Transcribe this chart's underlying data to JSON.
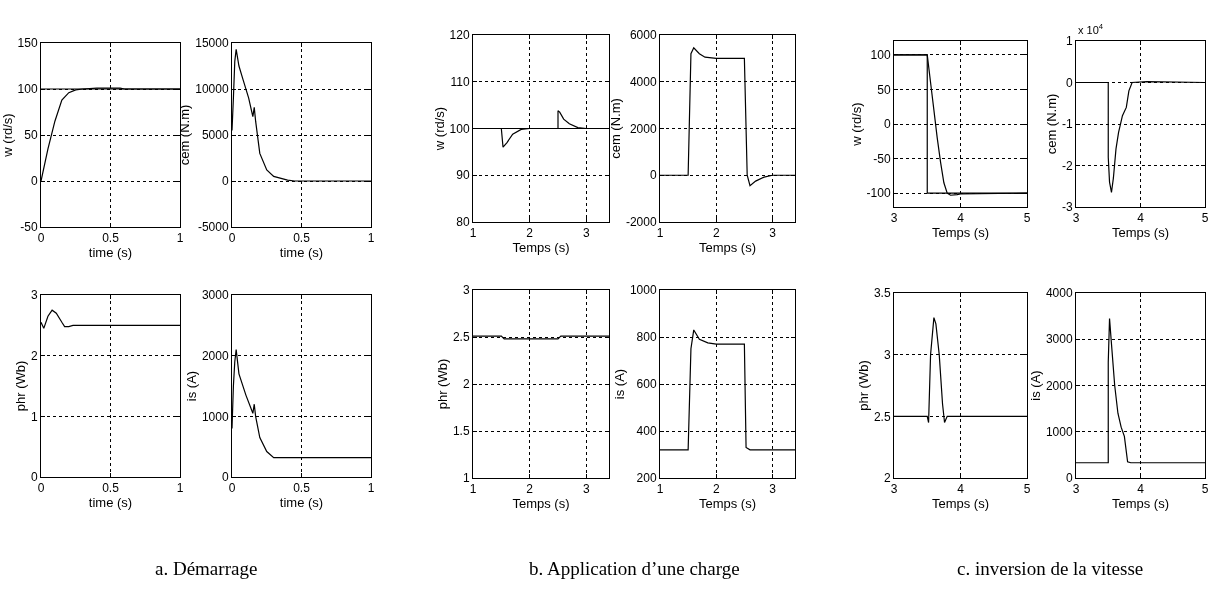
{
  "chart_data": [
    {
      "type": "line",
      "xlabel": "time (s)",
      "ylabel": "w (rd/s)",
      "xlim": [
        0,
        1
      ],
      "xticks": [
        0,
        0.5,
        1
      ],
      "ylim": [
        -50,
        150
      ],
      "yticks": [
        -50,
        0,
        50,
        100,
        150
      ],
      "grid": true,
      "ref_lines": [
        {
          "axis": "y",
          "value": 100,
          "color": "#000000"
        }
      ],
      "series": [
        {
          "color": "#000000",
          "x": [
            0,
            0.05,
            0.1,
            0.15,
            0.2,
            0.25,
            0.3,
            0.4,
            0.5,
            0.57,
            0.6,
            1
          ],
          "values": [
            0,
            35,
            65,
            88,
            96,
            99,
            100,
            101,
            101,
            101,
            100,
            100
          ]
        }
      ]
    },
    {
      "type": "line",
      "xlabel": "time (s)",
      "ylabel": "cem (N.m)",
      "xlim": [
        0,
        1
      ],
      "xticks": [
        0,
        0.5,
        1
      ],
      "ylim": [
        -5000,
        15000
      ],
      "yticks": [
        -5000,
        0,
        5000,
        10000,
        15000
      ],
      "grid": true,
      "series": [
        {
          "color": "#000000",
          "x": [
            0,
            0.01,
            0.02,
            0.03,
            0.05,
            0.08,
            0.12,
            0.15,
            0.16,
            0.17,
            0.2,
            0.25,
            0.3,
            0.4,
            0.45,
            1
          ],
          "values": [
            5500,
            9000,
            13000,
            14300,
            12500,
            11000,
            9000,
            7000,
            8000,
            6500,
            3000,
            1200,
            500,
            100,
            0,
            0
          ]
        }
      ]
    },
    {
      "type": "line",
      "xlabel": "Temps (s)",
      "ylabel": "w (rd/s)",
      "xlim": [
        1,
        3.4
      ],
      "xticks": [
        1,
        2,
        3
      ],
      "ylim": [
        80,
        120
      ],
      "yticks": [
        80,
        90,
        100,
        110,
        120
      ],
      "grid": true,
      "ref_lines": [
        {
          "axis": "y",
          "value": 100,
          "color": "#000000"
        }
      ],
      "series": [
        {
          "color": "#000000",
          "x": [
            1,
            1.5,
            1.53,
            1.6,
            1.7,
            1.85,
            2,
            2.5,
            2.5,
            2.53,
            2.6,
            2.7,
            2.85,
            3,
            3.4
          ],
          "values": [
            100,
            100,
            96,
            97,
            98.8,
            99.8,
            100,
            100,
            103.8,
            103.5,
            102,
            101,
            100.2,
            100,
            100
          ]
        }
      ]
    },
    {
      "type": "line",
      "xlabel": "Temps (s)",
      "ylabel": "cem (N.m)",
      "xlim": [
        1,
        3.4
      ],
      "xticks": [
        1,
        2,
        3
      ],
      "ylim": [
        -2000,
        6000
      ],
      "yticks": [
        -2000,
        0,
        2000,
        4000,
        6000
      ],
      "grid": true,
      "series": [
        {
          "color": "#000000",
          "x": [
            1,
            1.5,
            1.55,
            1.6,
            1.7,
            1.8,
            2,
            2.5,
            2.55,
            2.6,
            2.7,
            2.85,
            3,
            3.4
          ],
          "values": [
            0,
            0,
            5200,
            5450,
            5200,
            5050,
            5000,
            5000,
            0,
            -450,
            -250,
            -80,
            0,
            0
          ]
        }
      ]
    },
    {
      "type": "line",
      "xlabel": "Temps (s)",
      "ylabel": "w (rd/s)",
      "xlim": [
        3,
        5
      ],
      "xticks": [
        3,
        4,
        5
      ],
      "ylim": [
        -120,
        120
      ],
      "yticks": [
        -100,
        -50,
        0,
        50,
        100
      ],
      "grid": true,
      "series": [
        {
          "color": "#000000",
          "x": [
            3,
            3.5,
            3.5,
            5
          ],
          "values": [
            100,
            100,
            -100,
            -100
          ]
        },
        {
          "color": "#000000",
          "x": [
            3,
            3.5,
            3.55,
            3.6,
            3.65,
            3.7,
            3.75,
            3.8,
            3.85,
            3.95,
            4,
            5
          ],
          "values": [
            100,
            100,
            60,
            20,
            -20,
            -55,
            -85,
            -100,
            -103,
            -102,
            -101,
            -100
          ]
        }
      ]
    },
    {
      "type": "line",
      "xlabel": "Temps (s)",
      "ylabel": "cem (N.m)",
      "xlim": [
        3,
        5
      ],
      "xticks": [
        3,
        4,
        5
      ],
      "ylim": [
        -3,
        1
      ],
      "yticks": [
        -3,
        -2,
        -1,
        0,
        1
      ],
      "grid": true,
      "annotations": [
        "x 10$^{4}$"
      ],
      "series": [
        {
          "color": "#000000",
          "x": [
            3,
            3.5,
            3.5,
            3.52,
            3.55,
            3.58,
            3.62,
            3.66,
            3.72,
            3.78,
            3.82,
            3.87,
            4.1,
            5
          ],
          "values": [
            0,
            0,
            -1.8,
            -2.4,
            -2.65,
            -2.3,
            -1.6,
            -1.2,
            -0.8,
            -0.6,
            -0.2,
            0,
            0.02,
            0
          ]
        }
      ]
    },
    {
      "type": "line",
      "xlabel": "time (s)",
      "ylabel": "phr (Wb)",
      "xlim": [
        0,
        1
      ],
      "xticks": [
        0,
        0.5,
        1
      ],
      "ylim": [
        0,
        3
      ],
      "yticks": [
        0,
        1,
        2,
        3
      ],
      "grid": true,
      "annotations": [
        "a. Démarrage"
      ],
      "series": [
        {
          "color": "#000000",
          "x": [
            0,
            0.02,
            0.05,
            0.08,
            0.11,
            0.15,
            0.17,
            0.2,
            0.23,
            1
          ],
          "values": [
            2.55,
            2.45,
            2.65,
            2.75,
            2.7,
            2.55,
            2.48,
            2.48,
            2.5,
            2.5
          ]
        }
      ]
    },
    {
      "type": "line",
      "xlabel": "time (s)",
      "ylabel": "is (A)",
      "xlim": [
        0,
        1
      ],
      "xticks": [
        0,
        0.5,
        1
      ],
      "ylim": [
        0,
        3000
      ],
      "yticks": [
        0,
        1000,
        2000,
        3000
      ],
      "grid": true,
      "series": [
        {
          "color": "#000000",
          "x": [
            0,
            0.01,
            0.02,
            0.03,
            0.05,
            0.1,
            0.15,
            0.16,
            0.17,
            0.2,
            0.25,
            0.3,
            1
          ],
          "values": [
            800,
            1500,
            1900,
            2100,
            1700,
            1350,
            1050,
            1200,
            1000,
            650,
            420,
            320,
            320
          ]
        }
      ]
    },
    {
      "type": "line",
      "xlabel": "Temps (s)",
      "ylabel": "phr (Wb)",
      "xlim": [
        1,
        3.4
      ],
      "xticks": [
        1,
        2,
        3
      ],
      "ylim": [
        1,
        3
      ],
      "yticks": [
        1,
        1.5,
        2,
        2.5,
        3
      ],
      "grid": true,
      "annotations": [
        "b. Application d’une charge"
      ],
      "series": [
        {
          "color": "#000000",
          "x": [
            1,
            1.5,
            1.55,
            2.5,
            2.55,
            3.4
          ],
          "values": [
            2.51,
            2.51,
            2.48,
            2.48,
            2.51,
            2.51
          ]
        }
      ]
    },
    {
      "type": "line",
      "xlabel": "Temps (s)",
      "ylabel": "is (A)",
      "xlim": [
        1,
        3.4
      ],
      "xticks": [
        1,
        2,
        3
      ],
      "ylim": [
        200,
        1000
      ],
      "yticks": [
        200,
        400,
        600,
        800,
        1000
      ],
      "grid": true,
      "series": [
        {
          "color": "#000000",
          "x": [
            1,
            1.5,
            1.55,
            1.6,
            1.7,
            1.85,
            2,
            2.5,
            2.53,
            2.6,
            3.4
          ],
          "values": [
            320,
            320,
            750,
            830,
            790,
            775,
            770,
            770,
            330,
            320,
            320
          ]
        }
      ]
    },
    {
      "type": "line",
      "xlabel": "Temps (s)",
      "ylabel": "phr (Wb)",
      "xlim": [
        3,
        5
      ],
      "xticks": [
        3,
        4,
        5
      ],
      "ylim": [
        2,
        3.5
      ],
      "yticks": [
        2,
        2.5,
        3,
        3.5
      ],
      "grid": true,
      "annotations": [
        "c. inversion de la vitesse"
      ],
      "series": [
        {
          "color": "#000000",
          "x": [
            3,
            3.5,
            3.52,
            3.55,
            3.6,
            3.63,
            3.68,
            3.73,
            3.76,
            3.8,
            5
          ],
          "values": [
            2.5,
            2.5,
            2.45,
            3.0,
            3.3,
            3.25,
            3.0,
            2.6,
            2.45,
            2.5,
            2.5
          ]
        }
      ]
    },
    {
      "type": "line",
      "xlabel": "Temps (s)",
      "ylabel": "is (A)",
      "xlim": [
        3,
        5
      ],
      "xticks": [
        3,
        4,
        5
      ],
      "ylim": [
        0,
        4000
      ],
      "yticks": [
        0,
        1000,
        2000,
        3000,
        4000
      ],
      "grid": true,
      "series": [
        {
          "color": "#000000",
          "x": [
            3,
            3.5,
            3.5,
            3.52,
            3.55,
            3.6,
            3.65,
            3.7,
            3.75,
            3.8,
            3.85,
            5
          ],
          "values": [
            330,
            330,
            2500,
            3450,
            2900,
            2000,
            1400,
            1100,
            900,
            350,
            330,
            330
          ]
        }
      ]
    }
  ]
}
